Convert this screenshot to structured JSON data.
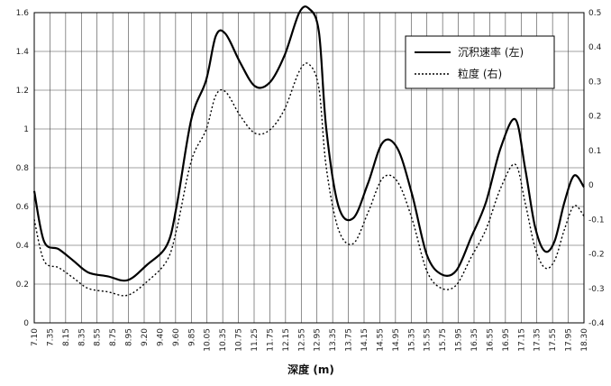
{
  "chart_data": {
    "type": "line",
    "xlabel": "深度 (m)",
    "ylabel_left": "",
    "ylabel_right": "",
    "grid": true,
    "legend_position": "top-right",
    "y_left_range": [
      0,
      1.6
    ],
    "y_left_ticks": [
      "0",
      "0.2",
      "0.4",
      "0.6",
      "0.8",
      "1",
      "1.2",
      "1.4",
      "1.6"
    ],
    "y_right_range": [
      -0.4,
      0.5
    ],
    "y_right_ticks": [
      "-0.4",
      "-0.3",
      "-0.2",
      "-0.1",
      "0",
      "0.1",
      "0.2",
      "0.3",
      "0.4",
      "0.5"
    ],
    "x_range": [
      7.1,
      18.3
    ],
    "x_ticks": [
      "7.10",
      "7.35",
      "8.15",
      "8.35",
      "8.55",
      "8.75",
      "8.95",
      "9.20",
      "9.40",
      "9.60",
      "9.85",
      "10.05",
      "10.35",
      "10.75",
      "11.25",
      "11.75",
      "12.15",
      "12.55",
      "12.95",
      "13.35",
      "13.75",
      "14.15",
      "14.55",
      "14.95",
      "15.35",
      "15.55",
      "15.75",
      "15.95",
      "16.35",
      "16.55",
      "16.95",
      "17.15",
      "17.35",
      "17.55",
      "17.95",
      "18.30"
    ],
    "series": [
      {
        "name": "沉积速率 (左)",
        "axis": "left",
        "style": "solid",
        "color": "#000000",
        "x": [
          7.1,
          7.3,
          7.6,
          7.9,
          8.2,
          8.6,
          9.0,
          9.4,
          9.8,
          10.0,
          10.3,
          10.6,
          10.8,
          11.0,
          11.3,
          11.6,
          11.9,
          12.2,
          12.5,
          12.7,
          12.9,
          13.05,
          13.3,
          13.6,
          13.9,
          14.2,
          14.5,
          14.8,
          15.1,
          15.4,
          15.7,
          16.0,
          16.3,
          16.6,
          16.9,
          17.1,
          17.3,
          17.5,
          17.7,
          17.9,
          18.1,
          18.3
        ],
        "y": [
          0.68,
          0.42,
          0.38,
          0.32,
          0.26,
          0.24,
          0.22,
          0.3,
          0.4,
          0.6,
          1.05,
          1.25,
          1.48,
          1.49,
          1.34,
          1.22,
          1.24,
          1.38,
          1.6,
          1.62,
          1.5,
          1.0,
          0.6,
          0.54,
          0.72,
          0.93,
          0.9,
          0.66,
          0.35,
          0.25,
          0.27,
          0.44,
          0.62,
          0.9,
          1.05,
          0.8,
          0.5,
          0.37,
          0.42,
          0.62,
          0.76,
          0.7
        ]
      },
      {
        "name": "粒度 (右)",
        "axis": "right",
        "style": "dotted",
        "color": "#000000",
        "x": [
          7.1,
          7.3,
          7.6,
          7.9,
          8.2,
          8.6,
          9.0,
          9.4,
          9.8,
          10.0,
          10.3,
          10.6,
          10.8,
          11.0,
          11.3,
          11.6,
          11.9,
          12.2,
          12.5,
          12.7,
          12.9,
          13.05,
          13.3,
          13.6,
          13.9,
          14.2,
          14.5,
          14.8,
          15.1,
          15.4,
          15.7,
          16.0,
          16.3,
          16.6,
          16.9,
          17.1,
          17.3,
          17.5,
          17.7,
          17.9,
          18.1,
          18.3
        ],
        "y": [
          -0.1,
          -0.22,
          -0.24,
          -0.27,
          -0.3,
          -0.31,
          -0.32,
          -0.28,
          -0.22,
          -0.13,
          0.07,
          0.16,
          0.26,
          0.27,
          0.2,
          0.15,
          0.16,
          0.22,
          0.33,
          0.35,
          0.28,
          0.05,
          -0.13,
          -0.17,
          -0.08,
          0.02,
          0.01,
          -0.1,
          -0.25,
          -0.3,
          -0.29,
          -0.21,
          -0.13,
          -0.01,
          0.06,
          -0.05,
          -0.18,
          -0.24,
          -0.22,
          -0.13,
          -0.06,
          -0.09
        ]
      }
    ]
  }
}
